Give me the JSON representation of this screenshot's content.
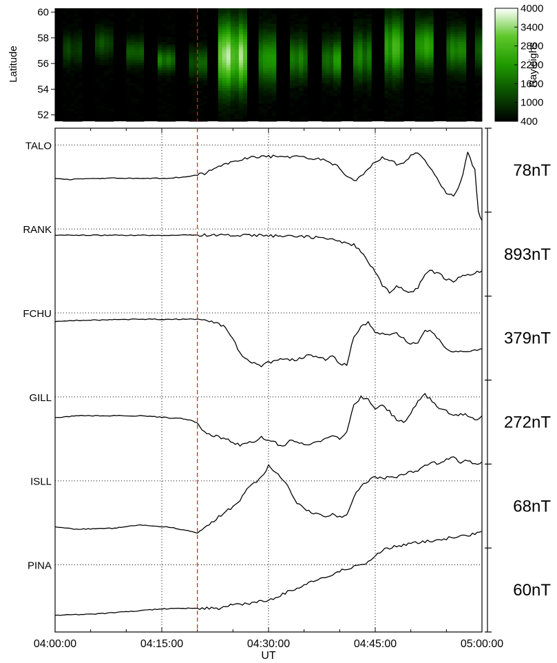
{
  "chart_data": [
    {
      "type": "heatmap",
      "ylabel": "Latitude",
      "yticks": [
        "52",
        "54",
        "56",
        "58",
        "60"
      ],
      "ylim": [
        51.5,
        60.3
      ],
      "colorbar": {
        "label": "Rayleighs",
        "ticks": [
          "400",
          "1000",
          "1600",
          "2200",
          "2800",
          "3400",
          "4000"
        ],
        "range": [
          400,
          4000
        ],
        "colors": [
          "#000000",
          "#0a4d00",
          "#1f9a00",
          "#5ec72a",
          "#ffffff"
        ]
      },
      "time_range": [
        "04:00:00",
        "05:00:00"
      ],
      "dark_gaps_ut": [
        [
          0.0,
          1.1
        ],
        [
          3.8,
          5.6
        ],
        [
          8.2,
          10.0
        ],
        [
          12.5,
          14.4
        ],
        [
          16.9,
          18.8
        ],
        [
          21.4,
          22.9
        ],
        [
          27.0,
          28.6
        ],
        [
          31.1,
          33.0
        ],
        [
          35.5,
          37.5
        ],
        [
          40.2,
          41.9
        ],
        [
          44.5,
          46.3
        ],
        [
          49.0,
          50.6
        ],
        [
          53.2,
          55.0
        ],
        [
          57.8,
          59.0
        ]
      ],
      "aurora": [
        {
          "t": [
            1.1,
            3.8
          ],
          "lat": 57.0,
          "width": 1.2,
          "peak": 1300
        },
        {
          "t": [
            5.6,
            8.2
          ],
          "lat": 57.5,
          "width": 1.1,
          "peak": 1500
        },
        {
          "t": [
            10.0,
            12.5
          ],
          "lat": 56.8,
          "width": 1.0,
          "peak": 1900
        },
        {
          "t": [
            14.4,
            16.9
          ],
          "lat": 56.2,
          "width": 0.9,
          "peak": 2000
        },
        {
          "t": [
            18.8,
            21.4
          ],
          "lat": 56.0,
          "width": 1.1,
          "peak": 1600
        },
        {
          "t": [
            22.9,
            27.0
          ],
          "lat": 56.5,
          "width": 2.6,
          "peak": 4000
        },
        {
          "t": [
            28.6,
            31.1
          ],
          "lat": 56.3,
          "width": 2.0,
          "peak": 2600
        },
        {
          "t": [
            33.0,
            35.5
          ],
          "lat": 56.3,
          "width": 1.6,
          "peak": 2000
        },
        {
          "t": [
            37.5,
            40.2
          ],
          "lat": 56.2,
          "width": 1.5,
          "peak": 2300
        },
        {
          "t": [
            41.9,
            44.5
          ],
          "lat": 56.5,
          "width": 1.8,
          "peak": 2100
        },
        {
          "t": [
            46.3,
            49.0
          ],
          "lat": 57.2,
          "width": 2.2,
          "peak": 2800
        },
        {
          "t": [
            50.6,
            53.2
          ],
          "lat": 57.3,
          "width": 1.8,
          "peak": 2600
        },
        {
          "t": [
            55.0,
            57.8
          ],
          "lat": 57.0,
          "width": 1.6,
          "peak": 2200
        },
        {
          "t": [
            59.0,
            60.0
          ],
          "lat": 57.0,
          "width": 1.5,
          "peak": 1600
        }
      ]
    },
    {
      "type": "line",
      "xlabel": "UT",
      "xticks": [
        "04:00:00",
        "04:15:00",
        "04:30:00",
        "04:45:00",
        "05:00:00"
      ],
      "xlim_minutes": [
        0,
        60
      ],
      "grid": "dotted",
      "event_line_ut": "04:20:00",
      "event_line_minutes": 20,
      "event_line_color": "#e02020",
      "series": [
        {
          "name": "TALO",
          "scale": "78nT",
          "values": [
            [
              0,
              0.8
            ],
            [
              2,
              0.82
            ],
            [
              5,
              0.8
            ],
            [
              8,
              0.79
            ],
            [
              12,
              0.8
            ],
            [
              16,
              0.79
            ],
            [
              19,
              0.75
            ],
            [
              21,
              0.68
            ],
            [
              24,
              0.45
            ],
            [
              27,
              0.3
            ],
            [
              29,
              0.28
            ],
            [
              32,
              0.27
            ],
            [
              35,
              0.3
            ],
            [
              37,
              0.32
            ],
            [
              39,
              0.45
            ],
            [
              40,
              0.55
            ],
            [
              41,
              0.78
            ],
            [
              42,
              0.85
            ],
            [
              43,
              0.75
            ],
            [
              44,
              0.55
            ],
            [
              45,
              0.4
            ],
            [
              46,
              0.3
            ],
            [
              47,
              0.35
            ],
            [
              48,
              0.45
            ],
            [
              49,
              0.4
            ],
            [
              50,
              0.25
            ],
            [
              51,
              0.2
            ],
            [
              52,
              0.35
            ],
            [
              53,
              0.6
            ],
            [
              54,
              0.9
            ],
            [
              55,
              1.15
            ],
            [
              56,
              1.2
            ],
            [
              57,
              0.9
            ],
            [
              58,
              0.2
            ],
            [
              59,
              0.6
            ],
            [
              59.5,
              1.6
            ],
            [
              60,
              1.8
            ]
          ]
        },
        {
          "name": "RANK",
          "scale": "893nT",
          "values": [
            [
              0,
              0.15
            ],
            [
              4,
              0.15
            ],
            [
              10,
              0.15
            ],
            [
              17,
              0.15
            ],
            [
              20,
              0.14
            ],
            [
              25,
              0.15
            ],
            [
              30,
              0.16
            ],
            [
              35,
              0.18
            ],
            [
              38,
              0.22
            ],
            [
              40,
              0.3
            ],
            [
              42,
              0.38
            ],
            [
              43,
              0.55
            ],
            [
              44,
              0.8
            ],
            [
              45,
              1.0
            ],
            [
              46,
              1.35
            ],
            [
              47,
              1.5
            ],
            [
              48,
              1.38
            ],
            [
              49,
              1.45
            ],
            [
              50,
              1.52
            ],
            [
              51,
              1.4
            ],
            [
              52,
              1.05
            ],
            [
              53,
              1.0
            ],
            [
              54,
              1.08
            ],
            [
              55,
              1.2
            ],
            [
              56,
              1.25
            ],
            [
              57,
              1.15
            ],
            [
              58,
              1.1
            ],
            [
              59,
              1.05
            ],
            [
              60,
              1.0
            ]
          ]
        },
        {
          "name": "FCHU",
          "scale": "379nT",
          "values": [
            [
              0,
              0.2
            ],
            [
              3,
              0.18
            ],
            [
              8,
              0.16
            ],
            [
              13,
              0.15
            ],
            [
              17,
              0.15
            ],
            [
              20,
              0.15
            ],
            [
              22,
              0.2
            ],
            [
              24,
              0.35
            ],
            [
              25,
              0.6
            ],
            [
              26,
              0.95
            ],
            [
              27,
              1.1
            ],
            [
              28,
              1.2
            ],
            [
              29,
              1.25
            ],
            [
              30,
              1.18
            ],
            [
              31,
              1.15
            ],
            [
              32,
              1.1
            ],
            [
              33,
              1.12
            ],
            [
              34,
              1.1
            ],
            [
              35,
              1.05
            ],
            [
              36,
              1.0
            ],
            [
              37,
              1.05
            ],
            [
              38,
              1.12
            ],
            [
              39,
              1.0
            ],
            [
              40,
              1.2
            ],
            [
              41,
              1.25
            ],
            [
              42,
              0.55
            ],
            [
              43,
              0.35
            ],
            [
              44,
              0.2
            ],
            [
              45,
              0.45
            ],
            [
              46,
              0.5
            ],
            [
              47,
              0.55
            ],
            [
              48,
              0.5
            ],
            [
              49,
              0.6
            ],
            [
              50,
              0.75
            ],
            [
              51,
              0.7
            ],
            [
              52,
              0.4
            ],
            [
              53,
              0.45
            ],
            [
              54,
              0.65
            ],
            [
              55,
              0.85
            ],
            [
              56,
              0.95
            ],
            [
              57,
              0.9
            ],
            [
              58,
              0.95
            ],
            [
              59,
              0.9
            ],
            [
              60,
              0.85
            ]
          ]
        },
        {
          "name": "GILL",
          "scale": "272nT",
          "values": [
            [
              0,
              0.5
            ],
            [
              3,
              0.45
            ],
            [
              8,
              0.45
            ],
            [
              12,
              0.45
            ],
            [
              16,
              0.5
            ],
            [
              18,
              0.52
            ],
            [
              19,
              0.55
            ],
            [
              20,
              0.62
            ],
            [
              21,
              0.85
            ],
            [
              22,
              0.9
            ],
            [
              23,
              0.95
            ],
            [
              24,
              1.0
            ],
            [
              25,
              1.1
            ],
            [
              26,
              1.15
            ],
            [
              27,
              1.1
            ],
            [
              28,
              1.05
            ],
            [
              29,
              0.95
            ],
            [
              30,
              1.05
            ],
            [
              31,
              1.1
            ],
            [
              32,
              1.2
            ],
            [
              33,
              1.0
            ],
            [
              34,
              1.05
            ],
            [
              35,
              1.15
            ],
            [
              36,
              1.1
            ],
            [
              37,
              1.05
            ],
            [
              38,
              1.0
            ],
            [
              39,
              0.95
            ],
            [
              40,
              1.0
            ],
            [
              41,
              0.85
            ],
            [
              42,
              0.2
            ],
            [
              43,
              0.0
            ],
            [
              44,
              0.05
            ],
            [
              45,
              0.3
            ],
            [
              46,
              0.2
            ],
            [
              47,
              0.35
            ],
            [
              48,
              0.55
            ],
            [
              49,
              0.6
            ],
            [
              50,
              0.4
            ],
            [
              51,
              0.1
            ],
            [
              52,
              -0.05
            ],
            [
              53,
              0.1
            ],
            [
              54,
              0.25
            ],
            [
              55,
              0.35
            ],
            [
              56,
              0.45
            ],
            [
              57,
              0.4
            ],
            [
              58,
              0.45
            ],
            [
              59,
              0.55
            ],
            [
              60,
              0.45
            ]
          ]
        },
        {
          "name": "ISLL",
          "scale": "68nT",
          "values": [
            [
              0,
              1.1
            ],
            [
              3,
              1.15
            ],
            [
              8,
              1.13
            ],
            [
              12,
              1.05
            ],
            [
              16,
              1.1
            ],
            [
              19,
              1.2
            ],
            [
              20,
              1.25
            ],
            [
              21,
              1.1
            ],
            [
              22,
              1.0
            ],
            [
              23,
              0.85
            ],
            [
              24,
              0.75
            ],
            [
              25,
              0.6
            ],
            [
              26,
              0.45
            ],
            [
              27,
              0.2
            ],
            [
              28,
              0.05
            ],
            [
              29,
              -0.1
            ],
            [
              30,
              -0.35
            ],
            [
              31,
              -0.2
            ],
            [
              32,
              0.0
            ],
            [
              33,
              0.2
            ],
            [
              34,
              0.55
            ],
            [
              35,
              0.65
            ],
            [
              36,
              0.75
            ],
            [
              37,
              0.8
            ],
            [
              38,
              0.85
            ],
            [
              39,
              0.8
            ],
            [
              40,
              0.85
            ],
            [
              41,
              0.8
            ],
            [
              42,
              0.4
            ],
            [
              43,
              0.1
            ],
            [
              44,
              0.0
            ],
            [
              45,
              -0.1
            ],
            [
              46,
              -0.05
            ],
            [
              47,
              -0.1
            ],
            [
              48,
              -0.1
            ],
            [
              49,
              -0.15
            ],
            [
              50,
              -0.2
            ],
            [
              51,
              -0.25
            ],
            [
              52,
              -0.35
            ],
            [
              53,
              -0.45
            ],
            [
              54,
              -0.4
            ],
            [
              55,
              -0.5
            ],
            [
              56,
              -0.55
            ],
            [
              57,
              -0.45
            ],
            [
              58,
              -0.5
            ],
            [
              59,
              -0.4
            ],
            [
              60,
              -0.45
            ]
          ]
        },
        {
          "name": "PINA",
          "scale": "60nT",
          "values": [
            [
              0,
              1.2
            ],
            [
              5,
              1.18
            ],
            [
              10,
              1.12
            ],
            [
              15,
              1.05
            ],
            [
              20,
              1.03
            ],
            [
              23,
              1.05
            ],
            [
              25,
              0.95
            ],
            [
              27,
              0.92
            ],
            [
              30,
              0.85
            ],
            [
              32,
              0.7
            ],
            [
              34,
              0.55
            ],
            [
              36,
              0.4
            ],
            [
              38,
              0.3
            ],
            [
              40,
              0.15
            ],
            [
              42,
              0.05
            ],
            [
              44,
              -0.05
            ],
            [
              46,
              -0.35
            ],
            [
              48,
              -0.45
            ],
            [
              50,
              -0.5
            ],
            [
              52,
              -0.55
            ],
            [
              54,
              -0.6
            ],
            [
              56,
              -0.65
            ],
            [
              58,
              -0.7
            ],
            [
              60,
              -0.8
            ]
          ]
        }
      ]
    }
  ]
}
